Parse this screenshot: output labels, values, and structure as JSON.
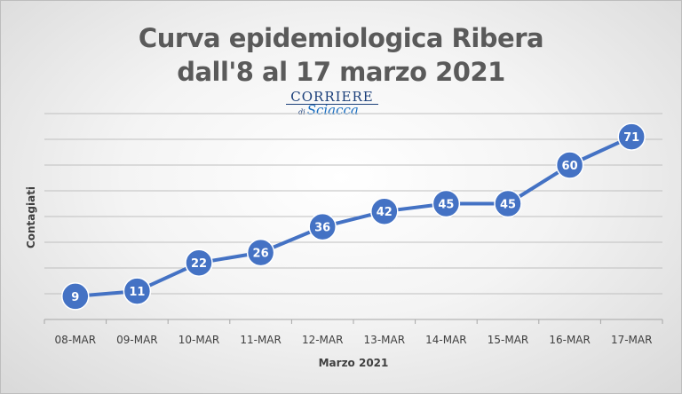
{
  "chart_data": {
    "type": "line",
    "title_line1": "Curva epidemiologica Ribera",
    "title_line2": "dall'8 al 17 marzo 2021",
    "xlabel": "Marzo 2021",
    "ylabel": "Contagiati",
    "categories": [
      "08-MAR",
      "09-MAR",
      "10-MAR",
      "11-MAR",
      "12-MAR",
      "13-MAR",
      "14-MAR",
      "15-MAR",
      "16-MAR",
      "17-MAR"
    ],
    "series": [
      {
        "values": [
          9,
          11,
          22,
          26,
          36,
          42,
          45,
          45,
          60,
          71
        ]
      }
    ],
    "ylim": [
      0,
      80
    ],
    "grid": true,
    "data_labels": true,
    "colors": {
      "line": "#4472c4",
      "marker": "#4472c4",
      "label": "#ffffff",
      "grid": "#bfbfbf"
    }
  },
  "logo": {
    "top_text": "CORRIERE",
    "di_text": "di",
    "bottom_text": "Sciacca"
  }
}
